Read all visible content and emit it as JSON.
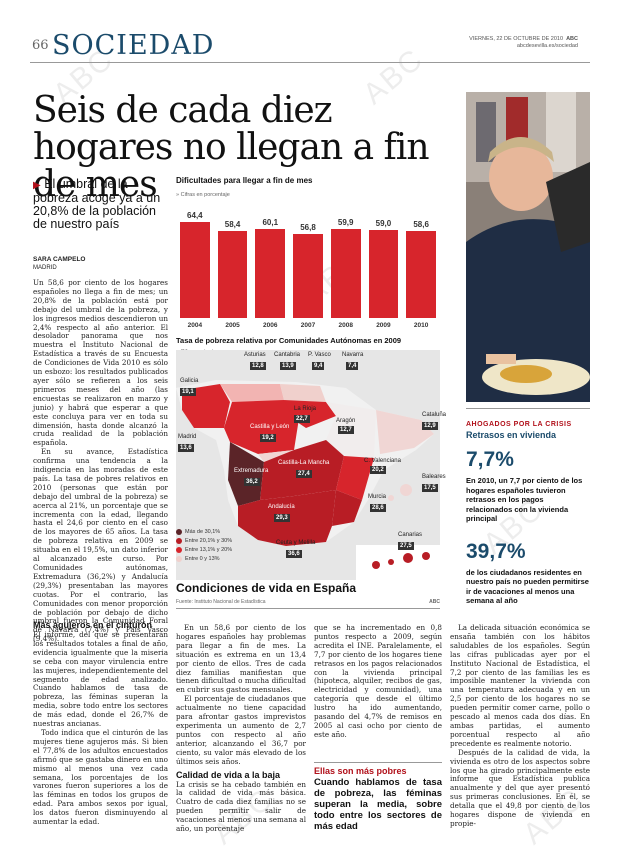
{
  "header": {
    "page_number": "66",
    "section": "SOCIEDAD",
    "date": "VIERNES, 22 DE OCTUBRE DE 2010",
    "brand": "ABC",
    "site": "abcdesevilla.es/sociedad"
  },
  "watermark": "ABC",
  "title": "Seis de cada diez hogares no llegan a fin de mes",
  "lead": "El umbral de la pobreza acoge ya a un 20,8% de la población de nuestro país",
  "byline": {
    "author": "SARA CAMPELO",
    "place": "MADRID"
  },
  "colors": {
    "accent": "#b1101a",
    "blue": "#1b4b6b",
    "bar": "#d7252c"
  },
  "chart_data": [
    {
      "type": "bar",
      "title": "Dificultades para llegar a fin de mes",
      "subtitle": "Cifras en porcentaje",
      "categories": [
        "2004",
        "2005",
        "2006",
        "2007",
        "2008",
        "2009",
        "2010"
      ],
      "values": [
        64.4,
        58.4,
        60.1,
        56.8,
        59.9,
        59.0,
        58.6
      ],
      "labels": [
        "64,4",
        "58,4",
        "60,1",
        "56,8",
        "59,9",
        "59,0",
        "58,6"
      ],
      "ylim": [
        0,
        70
      ]
    },
    {
      "type": "table",
      "title": "Tasa de pobreza relativa por Comunidades Autónomas en 2009",
      "note": "Cifras en tanto",
      "regions": [
        {
          "name": "Asturias",
          "value": "12,8"
        },
        {
          "name": "Cantabria",
          "value": "13,9"
        },
        {
          "name": "P. Vasco",
          "value": "9,4"
        },
        {
          "name": "Navarra",
          "value": "7,4"
        },
        {
          "name": "Galicia",
          "value": "19,1"
        },
        {
          "name": "La Rioja",
          "value": "22,7"
        },
        {
          "name": "Castilla y León",
          "value": "19,2"
        },
        {
          "name": "Aragón",
          "value": "12,7"
        },
        {
          "name": "Cataluña",
          "value": "12,9"
        },
        {
          "name": "Madrid",
          "value": "13,6"
        },
        {
          "name": "Castilla-La Mancha",
          "value": "27,4"
        },
        {
          "name": "C. Valenciana",
          "value": "20,2"
        },
        {
          "name": "Extremadura",
          "value": "36,2"
        },
        {
          "name": "Baleares",
          "value": "17,5"
        },
        {
          "name": "Murcia",
          "value": "28,6"
        },
        {
          "name": "Andalucía",
          "value": "29,3"
        },
        {
          "name": "Ceuta y Melilla",
          "value": "36,6"
        },
        {
          "name": "Canarias",
          "value": "27,5"
        }
      ],
      "legend": [
        "Más de 30,1%",
        "Entre 20,1% y 30%",
        "Entre 13,1% y 20%",
        "Entre 0 y 13%"
      ]
    }
  ],
  "infographic": {
    "title": "Condiciones de vida en España",
    "source": "Fuente: Instituto Nacional de Estadística",
    "brand": "ABC"
  },
  "body": {
    "col1": "Un 58,6 por ciento de los hogares españoles no llega a fin de mes; un 20,8% de la población está por debajo del umbral de la pobreza, y los ingresos medios descendieron un 2,4% respecto al año anterior. El desolador panorama que nos muestra el Instituto Nacional de Estadística a través de su Encuesta de Condiciones de Vida 2010 es sólo un esbozo: los resultados publicados ayer sólo se refieren a los seis primeros meses del año (las encuestas se realizaron en marzo y junio) y habrá que esperar a que este concluya para ver en toda su dimensión, hasta donde alcanzó la cruda realidad de la población española.",
    "col1b": "En su avance, Estadística confirma una tendencia a la indigencia en las moradas de este país. La tasa de pobres relativos en 2010 (personas que están por debajo del umbral de la pobreza) se acerca al 21%, un porcentaje que se incrementa con la edad, llegando hasta el 24,6 por ciento en el caso de los mayores de 65 años. La tasa de pobreza relativa en 2009 se situaba en el 19,5%, un dato inferior al alcanzado este curso. Por Comunidades autónomas, Extremadura (36,2%) y Andalucía (29,3%) presentaban las mayores cuotas. Por el contrario, las Comunidades con menor proporción de población por debajo de dicho umbral fueron la Comunidad Foral de Navarra (7,4%) y País Vasco (9,4%).",
    "sub1": "Más agujeros en el cinturón",
    "col1c": "El informe, del que se presentarán los resultados totales a final de año, evidencia igualmente que la miseria se ceba con mayor virulencia entre las mujeres, independientemente del segmento de edad analizado. Cuando hablamos de tasa de pobreza, las féminas superan la media, sobre todo entre los sectores de más edad, donde el 26,7% de nuestras ancianas.",
    "col1d": "Todo indica que el cinturón de las mujeres tiene agujeros más. Si bien el 77,8% de los adultos encuestados afirmó que se gastaba dinero en uno mismo al menos una vez cada semana, los porcentajes de los varones fueron superiores a los de las féminas en todos los grupos de edad. Para ambos sexos por igual, los datos fueron disminuyendo al aumentar la edad.",
    "col2": "En un 58,6 por ciento de los hogares españoles hay problemas para llegar a fin de mes. La situación es extrema en un 13,4 por ciento de ellos. Tres de cada diez familias manifiestan que tienen dificultad o mucha dificultad en cubrir sus gastos mensuales.",
    "col2b": "El porcentaje de ciudadanos que actualmente no tiene capacidad para afrontar gastos imprevistos experimenta un aumento de 2,7 puntos con respecto al año anterior, alcanzando el 36,7 por ciento, su valor más elevado de los últimos seis años.",
    "sub2": "Calidad de vida a la baja",
    "col2c": "La crisis se ha cebado también en la calidad de vida más básica. Cuatro de cada diez familias no se pueden permitir salir de vacaciones al menos una semana al año, un porcentaje",
    "col3": "que se ha incrementado en 0,8 puntos respecto a 2009, según acredita el INE. Paralelamente, el 7,7 por ciento de los hogares tiene retrasos en los pagos relacionados con la vivienda principal (hipoteca, alquiler, recibos de gas, electricidad y comunidad), una categoría que desde el último lustro ha ido aumentando, pasando del 4,7% de remisos en 2005 al casi ocho por ciento de este año.",
    "pull_kicker": "Ellas son más pobres",
    "pull": "Cuando hablamos de tasa de pobreza, las féminas superan la media, sobre todo entre los sectores de más edad",
    "col4": "La delicada situación económica se ensaña también con los hábitos saludables de los españoles. Según las cifras publicadas ayer por el Instituto Nacional de Estadística, el 7,2 por ciento de las familias les es imposible mantener la vivienda con una temperatura adecuada y en un 2,5 por ciento de los hogares no se pueden permitir comer carne, pollo o pescado al menos cada dos días. En ambas partidas, el aumento porcentual respecto al año precedente es realmente notorio.",
    "col4b": "Después de la calidad de vida, la vivienda es otro de los aspectos sobre los que ha girado principalmente este informe que Estadística publica anualmente y del que ayer presentó sus primeras conclusiones. En él, se detalla que el 49,8 por ciento de los hogares dispone de vivienda en propie-"
  },
  "sidebar": {
    "kicker": "AHOGADOS POR LA CRISIS",
    "sub": "Retrasos en vivienda",
    "stat1": "7,7%",
    "text1": "En 2010, un 7,7 por ciento de los hogares españoles tuvieron retrasos en los pagos relacionados con la vivienda principal",
    "stat2": "39,7%",
    "text2": "de los ciudadanos residentes en nuestro país no pueden permitirse ir de vacaciones al menos una semana al año"
  }
}
